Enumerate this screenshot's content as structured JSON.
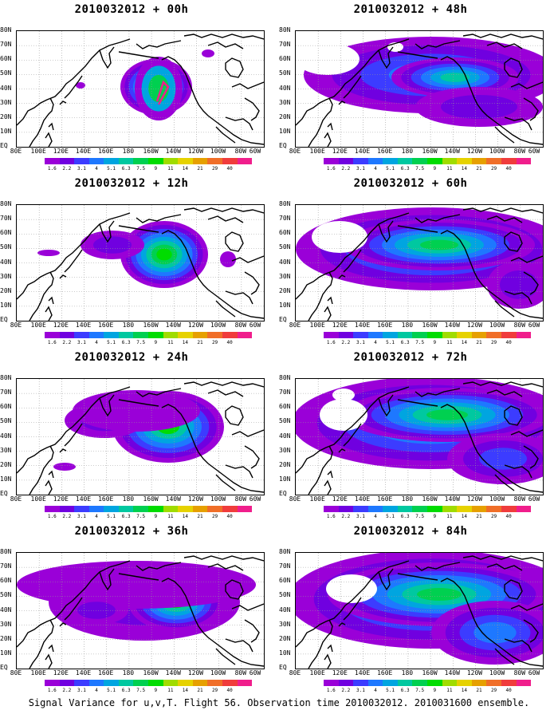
{
  "panels": [
    {
      "title": "2010032012 + 00h",
      "col": 0,
      "row": 0,
      "stage": 0
    },
    {
      "title": "2010032012 + 12h",
      "col": 0,
      "row": 1,
      "stage": 1
    },
    {
      "title": "2010032012 + 24h",
      "col": 0,
      "row": 2,
      "stage": 2
    },
    {
      "title": "2010032012 + 36h",
      "col": 0,
      "row": 3,
      "stage": 3
    },
    {
      "title": "2010032012 + 48h",
      "col": 1,
      "row": 0,
      "stage": 4
    },
    {
      "title": "2010032012 + 60h",
      "col": 1,
      "row": 1,
      "stage": 5
    },
    {
      "title": "2010032012 + 72h",
      "col": 1,
      "row": 2,
      "stage": 6
    },
    {
      "title": "2010032012 + 84h",
      "col": 1,
      "row": 3,
      "stage": 7
    }
  ],
  "lat_labels": [
    "80N",
    "70N",
    "60N",
    "50N",
    "40N",
    "30N",
    "20N",
    "10N",
    "EQ"
  ],
  "lon_labels": [
    "80E",
    "100E",
    "120E",
    "140E",
    "160E",
    "180",
    "160W",
    "140W",
    "120W",
    "100W",
    "80W",
    "60W"
  ],
  "colorbar": {
    "labels": [
      "1.6",
      "2.2",
      "3.1",
      "4",
      "5.1",
      "6.3",
      "7.5",
      "9",
      "11",
      "14",
      "21",
      "29",
      "40"
    ],
    "colors": [
      "#9a00d8",
      "#7000e0",
      "#3c3cff",
      "#1e78ff",
      "#00a5e0",
      "#00c8a0",
      "#00d050",
      "#00dc00",
      "#a0dc00",
      "#e6d200",
      "#e6a000",
      "#f06e28",
      "#f03c3c",
      "#f01e8c"
    ]
  },
  "caption": "Signal Variance for u,v,T. Flight 56. Observation time 2010032012. 2010031600 ensemble."
}
